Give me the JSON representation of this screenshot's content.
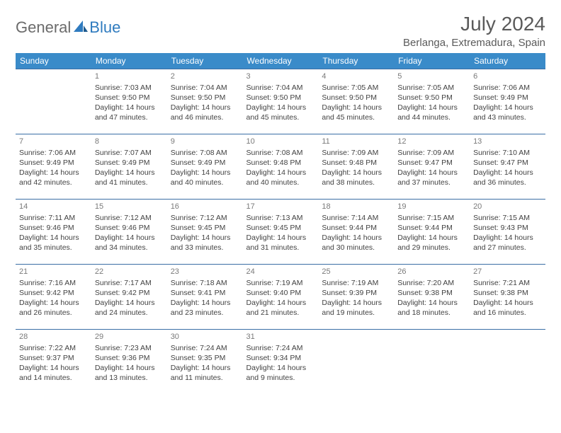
{
  "brand": {
    "part1": "General",
    "part2": "Blue"
  },
  "header": {
    "month_title": "July 2024",
    "location": "Berlanga, Extremadura, Spain"
  },
  "colors": {
    "header_bg": "#3a8bc9",
    "header_text": "#ffffff",
    "row_border": "#3a6ea5",
    "body_text": "#424242",
    "daynum": "#7a7a7a",
    "brand_gray": "#6b6b6b",
    "brand_blue": "#2f7bbf"
  },
  "weekdays": [
    "Sunday",
    "Monday",
    "Tuesday",
    "Wednesday",
    "Thursday",
    "Friday",
    "Saturday"
  ],
  "weeks": [
    [
      {},
      {
        "day": "1",
        "sunrise": "Sunrise: 7:03 AM",
        "sunset": "Sunset: 9:50 PM",
        "daylight": "Daylight: 14 hours and 47 minutes."
      },
      {
        "day": "2",
        "sunrise": "Sunrise: 7:04 AM",
        "sunset": "Sunset: 9:50 PM",
        "daylight": "Daylight: 14 hours and 46 minutes."
      },
      {
        "day": "3",
        "sunrise": "Sunrise: 7:04 AM",
        "sunset": "Sunset: 9:50 PM",
        "daylight": "Daylight: 14 hours and 45 minutes."
      },
      {
        "day": "4",
        "sunrise": "Sunrise: 7:05 AM",
        "sunset": "Sunset: 9:50 PM",
        "daylight": "Daylight: 14 hours and 45 minutes."
      },
      {
        "day": "5",
        "sunrise": "Sunrise: 7:05 AM",
        "sunset": "Sunset: 9:50 PM",
        "daylight": "Daylight: 14 hours and 44 minutes."
      },
      {
        "day": "6",
        "sunrise": "Sunrise: 7:06 AM",
        "sunset": "Sunset: 9:49 PM",
        "daylight": "Daylight: 14 hours and 43 minutes."
      }
    ],
    [
      {
        "day": "7",
        "sunrise": "Sunrise: 7:06 AM",
        "sunset": "Sunset: 9:49 PM",
        "daylight": "Daylight: 14 hours and 42 minutes."
      },
      {
        "day": "8",
        "sunrise": "Sunrise: 7:07 AM",
        "sunset": "Sunset: 9:49 PM",
        "daylight": "Daylight: 14 hours and 41 minutes."
      },
      {
        "day": "9",
        "sunrise": "Sunrise: 7:08 AM",
        "sunset": "Sunset: 9:49 PM",
        "daylight": "Daylight: 14 hours and 40 minutes."
      },
      {
        "day": "10",
        "sunrise": "Sunrise: 7:08 AM",
        "sunset": "Sunset: 9:48 PM",
        "daylight": "Daylight: 14 hours and 40 minutes."
      },
      {
        "day": "11",
        "sunrise": "Sunrise: 7:09 AM",
        "sunset": "Sunset: 9:48 PM",
        "daylight": "Daylight: 14 hours and 38 minutes."
      },
      {
        "day": "12",
        "sunrise": "Sunrise: 7:09 AM",
        "sunset": "Sunset: 9:47 PM",
        "daylight": "Daylight: 14 hours and 37 minutes."
      },
      {
        "day": "13",
        "sunrise": "Sunrise: 7:10 AM",
        "sunset": "Sunset: 9:47 PM",
        "daylight": "Daylight: 14 hours and 36 minutes."
      }
    ],
    [
      {
        "day": "14",
        "sunrise": "Sunrise: 7:11 AM",
        "sunset": "Sunset: 9:46 PM",
        "daylight": "Daylight: 14 hours and 35 minutes."
      },
      {
        "day": "15",
        "sunrise": "Sunrise: 7:12 AM",
        "sunset": "Sunset: 9:46 PM",
        "daylight": "Daylight: 14 hours and 34 minutes."
      },
      {
        "day": "16",
        "sunrise": "Sunrise: 7:12 AM",
        "sunset": "Sunset: 9:45 PM",
        "daylight": "Daylight: 14 hours and 33 minutes."
      },
      {
        "day": "17",
        "sunrise": "Sunrise: 7:13 AM",
        "sunset": "Sunset: 9:45 PM",
        "daylight": "Daylight: 14 hours and 31 minutes."
      },
      {
        "day": "18",
        "sunrise": "Sunrise: 7:14 AM",
        "sunset": "Sunset: 9:44 PM",
        "daylight": "Daylight: 14 hours and 30 minutes."
      },
      {
        "day": "19",
        "sunrise": "Sunrise: 7:15 AM",
        "sunset": "Sunset: 9:44 PM",
        "daylight": "Daylight: 14 hours and 29 minutes."
      },
      {
        "day": "20",
        "sunrise": "Sunrise: 7:15 AM",
        "sunset": "Sunset: 9:43 PM",
        "daylight": "Daylight: 14 hours and 27 minutes."
      }
    ],
    [
      {
        "day": "21",
        "sunrise": "Sunrise: 7:16 AM",
        "sunset": "Sunset: 9:42 PM",
        "daylight": "Daylight: 14 hours and 26 minutes."
      },
      {
        "day": "22",
        "sunrise": "Sunrise: 7:17 AM",
        "sunset": "Sunset: 9:42 PM",
        "daylight": "Daylight: 14 hours and 24 minutes."
      },
      {
        "day": "23",
        "sunrise": "Sunrise: 7:18 AM",
        "sunset": "Sunset: 9:41 PM",
        "daylight": "Daylight: 14 hours and 23 minutes."
      },
      {
        "day": "24",
        "sunrise": "Sunrise: 7:19 AM",
        "sunset": "Sunset: 9:40 PM",
        "daylight": "Daylight: 14 hours and 21 minutes."
      },
      {
        "day": "25",
        "sunrise": "Sunrise: 7:19 AM",
        "sunset": "Sunset: 9:39 PM",
        "daylight": "Daylight: 14 hours and 19 minutes."
      },
      {
        "day": "26",
        "sunrise": "Sunrise: 7:20 AM",
        "sunset": "Sunset: 9:38 PM",
        "daylight": "Daylight: 14 hours and 18 minutes."
      },
      {
        "day": "27",
        "sunrise": "Sunrise: 7:21 AM",
        "sunset": "Sunset: 9:38 PM",
        "daylight": "Daylight: 14 hours and 16 minutes."
      }
    ],
    [
      {
        "day": "28",
        "sunrise": "Sunrise: 7:22 AM",
        "sunset": "Sunset: 9:37 PM",
        "daylight": "Daylight: 14 hours and 14 minutes."
      },
      {
        "day": "29",
        "sunrise": "Sunrise: 7:23 AM",
        "sunset": "Sunset: 9:36 PM",
        "daylight": "Daylight: 14 hours and 13 minutes."
      },
      {
        "day": "30",
        "sunrise": "Sunrise: 7:24 AM",
        "sunset": "Sunset: 9:35 PM",
        "daylight": "Daylight: 14 hours and 11 minutes."
      },
      {
        "day": "31",
        "sunrise": "Sunrise: 7:24 AM",
        "sunset": "Sunset: 9:34 PM",
        "daylight": "Daylight: 14 hours and 9 minutes."
      },
      {},
      {},
      {}
    ]
  ]
}
